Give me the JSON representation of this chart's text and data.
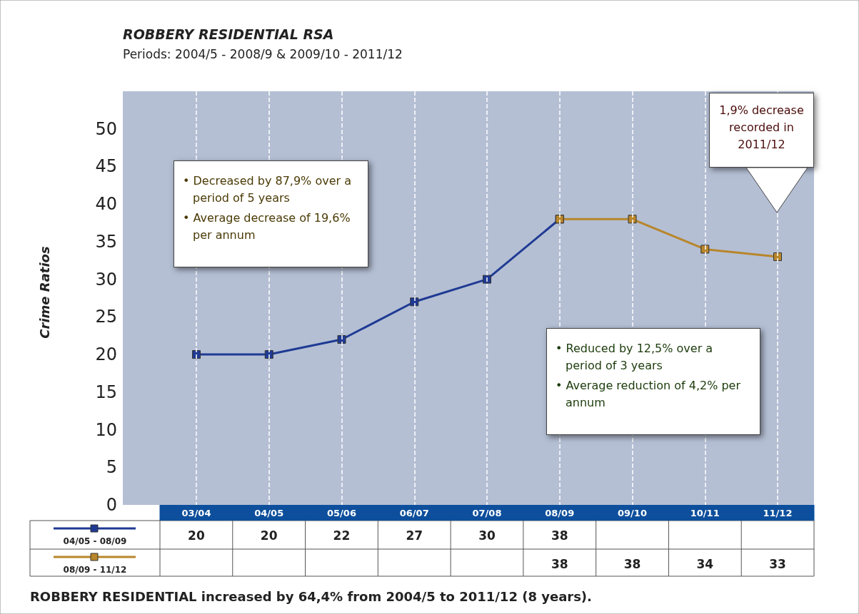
{
  "chart_data": {
    "type": "line",
    "title": "ROBBERY RESIDENTIAL RSA",
    "subtitle": "Periods: 2004/5 - 2008/9 & 2009/10 - 2011/12",
    "ylabel": "Crime Ratios",
    "categories": [
      "03/04",
      "04/05",
      "05/06",
      "06/07",
      "07/08",
      "08/09",
      "09/10",
      "10/11",
      "11/12"
    ],
    "series": [
      {
        "name": "04/05 - 08/09",
        "color": "#1f3a93",
        "values": [
          20,
          20,
          22,
          27,
          30,
          38,
          null,
          null,
          null
        ]
      },
      {
        "name": "08/09 - 11/12",
        "color": "#b8862b",
        "values": [
          null,
          null,
          null,
          null,
          null,
          38,
          38,
          34,
          33
        ]
      }
    ],
    "ylim": [
      0,
      55
    ],
    "legend": "bottom left",
    "yticks": [
      0,
      5,
      10,
      15,
      20,
      25,
      30,
      35,
      40,
      45,
      50
    ],
    "grid": "x",
    "marker": "square",
    "line_style": "solid",
    "data_labels": true,
    "annotations": [
      "• Decreased by 87,9% over a period of 5 years",
      "• Average decrease of 19,6% per annum",
      "• Reduced by 12,5% over a period of 3 years",
      "• Average reduction of 4,2% per annum",
      "1,9% decrease recorded in 2011/12",
      "ROBBERY RESIDENTIAL increased by 64,4% from 2004/5 to 2011/12 (8 years)."
    ]
  }
}
